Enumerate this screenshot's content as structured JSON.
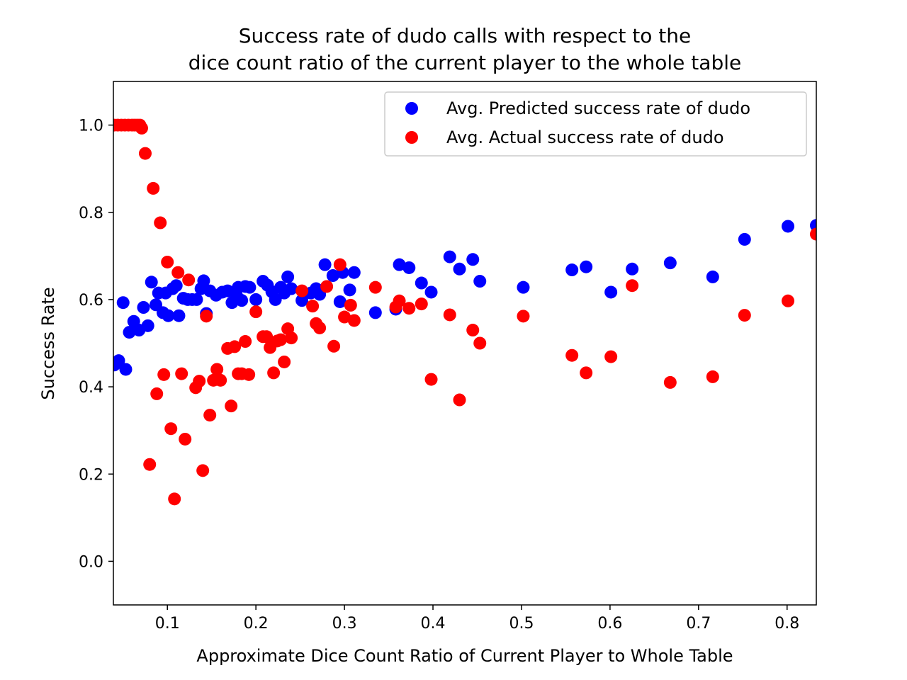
{
  "chart_data": {
    "type": "scatter",
    "title_lines": [
      "Success rate of dudo calls with respect to the",
      "dice count ratio of the current player to the whole table"
    ],
    "xlabel": "Approximate Dice Count Ratio of Current Player to Whole Table",
    "ylabel": "Success Rate",
    "xlim": [
      0.039,
      0.833
    ],
    "ylim": [
      -0.1,
      1.1
    ],
    "xticks": [
      {
        "value": 0.1,
        "label": "0.1"
      },
      {
        "value": 0.2,
        "label": "0.2"
      },
      {
        "value": 0.3,
        "label": "0.3"
      },
      {
        "value": 0.4,
        "label": "0.4"
      },
      {
        "value": 0.5,
        "label": "0.5"
      },
      {
        "value": 0.6,
        "label": "0.6"
      },
      {
        "value": 0.7,
        "label": "0.7"
      },
      {
        "value": 0.8,
        "label": "0.8"
      }
    ],
    "yticks": [
      {
        "value": 0.0,
        "label": "0.0"
      },
      {
        "value": 0.2,
        "label": "0.2"
      },
      {
        "value": 0.4,
        "label": "0.4"
      },
      {
        "value": 0.6,
        "label": "0.6"
      },
      {
        "value": 0.8,
        "label": "0.8"
      },
      {
        "value": 1.0,
        "label": "1.0"
      }
    ],
    "grid": false,
    "legend_position": "top-right",
    "series": [
      {
        "name": "Avg. Predicted success rate of dudo",
        "color": "#0000ff",
        "points": [
          [
            0.04,
            0.45
          ],
          [
            0.045,
            0.46
          ],
          [
            0.05,
            0.593
          ],
          [
            0.053,
            0.44
          ],
          [
            0.057,
            0.525
          ],
          [
            0.062,
            0.55
          ],
          [
            0.068,
            0.53
          ],
          [
            0.073,
            0.582
          ],
          [
            0.078,
            0.54
          ],
          [
            0.082,
            0.64
          ],
          [
            0.087,
            0.588
          ],
          [
            0.09,
            0.615
          ],
          [
            0.095,
            0.57
          ],
          [
            0.098,
            0.615
          ],
          [
            0.101,
            0.563
          ],
          [
            0.106,
            0.625
          ],
          [
            0.11,
            0.632
          ],
          [
            0.113,
            0.563
          ],
          [
            0.118,
            0.603
          ],
          [
            0.123,
            0.6
          ],
          [
            0.128,
            0.6
          ],
          [
            0.133,
            0.6
          ],
          [
            0.138,
            0.625
          ],
          [
            0.141,
            0.643
          ],
          [
            0.144,
            0.568
          ],
          [
            0.148,
            0.62
          ],
          [
            0.155,
            0.61
          ],
          [
            0.162,
            0.617
          ],
          [
            0.168,
            0.62
          ],
          [
            0.173,
            0.593
          ],
          [
            0.178,
            0.61
          ],
          [
            0.18,
            0.628
          ],
          [
            0.184,
            0.598
          ],
          [
            0.188,
            0.63
          ],
          [
            0.193,
            0.628
          ],
          [
            0.2,
            0.6
          ],
          [
            0.208,
            0.642
          ],
          [
            0.213,
            0.633
          ],
          [
            0.218,
            0.618
          ],
          [
            0.222,
            0.6
          ],
          [
            0.228,
            0.628
          ],
          [
            0.232,
            0.615
          ],
          [
            0.236,
            0.652
          ],
          [
            0.24,
            0.625
          ],
          [
            0.252,
            0.598
          ],
          [
            0.262,
            0.615
          ],
          [
            0.268,
            0.625
          ],
          [
            0.272,
            0.612
          ],
          [
            0.278,
            0.68
          ],
          [
            0.287,
            0.655
          ],
          [
            0.295,
            0.595
          ],
          [
            0.298,
            0.662
          ],
          [
            0.306,
            0.622
          ],
          [
            0.311,
            0.662
          ],
          [
            0.335,
            0.57
          ],
          [
            0.358,
            0.578
          ],
          [
            0.362,
            0.68
          ],
          [
            0.373,
            0.673
          ],
          [
            0.387,
            0.638
          ],
          [
            0.398,
            0.617
          ],
          [
            0.419,
            0.698
          ],
          [
            0.43,
            0.67
          ],
          [
            0.445,
            0.692
          ],
          [
            0.453,
            0.642
          ],
          [
            0.502,
            0.628
          ],
          [
            0.557,
            0.668
          ],
          [
            0.573,
            0.675
          ],
          [
            0.601,
            0.617
          ],
          [
            0.625,
            0.67
          ],
          [
            0.668,
            0.684
          ],
          [
            0.716,
            0.652
          ],
          [
            0.752,
            0.738
          ],
          [
            0.801,
            0.768
          ],
          [
            0.833,
            0.77
          ]
        ]
      },
      {
        "name": "Avg. Actual success rate of dudo",
        "color": "#ff0000",
        "points": [
          [
            0.04,
            1.0
          ],
          [
            0.044,
            1.0
          ],
          [
            0.048,
            1.0
          ],
          [
            0.052,
            1.0
          ],
          [
            0.056,
            1.0
          ],
          [
            0.06,
            1.0
          ],
          [
            0.063,
            1.0
          ],
          [
            0.066,
            1.0
          ],
          [
            0.069,
            1.0
          ],
          [
            0.071,
            0.993
          ],
          [
            0.075,
            0.935
          ],
          [
            0.08,
            0.222
          ],
          [
            0.084,
            0.855
          ],
          [
            0.088,
            0.384
          ],
          [
            0.092,
            0.776
          ],
          [
            0.096,
            0.428
          ],
          [
            0.1,
            0.686
          ],
          [
            0.104,
            0.304
          ],
          [
            0.108,
            0.143
          ],
          [
            0.112,
            0.662
          ],
          [
            0.116,
            0.43
          ],
          [
            0.12,
            0.28
          ],
          [
            0.124,
            0.645
          ],
          [
            0.132,
            0.398
          ],
          [
            0.136,
            0.413
          ],
          [
            0.14,
            0.208
          ],
          [
            0.144,
            0.562
          ],
          [
            0.148,
            0.335
          ],
          [
            0.152,
            0.415
          ],
          [
            0.156,
            0.44
          ],
          [
            0.16,
            0.415
          ],
          [
            0.168,
            0.488
          ],
          [
            0.172,
            0.356
          ],
          [
            0.176,
            0.492
          ],
          [
            0.18,
            0.43
          ],
          [
            0.184,
            0.43
          ],
          [
            0.188,
            0.504
          ],
          [
            0.192,
            0.428
          ],
          [
            0.2,
            0.572
          ],
          [
            0.208,
            0.515
          ],
          [
            0.212,
            0.515
          ],
          [
            0.216,
            0.49
          ],
          [
            0.22,
            0.432
          ],
          [
            0.224,
            0.505
          ],
          [
            0.228,
            0.508
          ],
          [
            0.232,
            0.457
          ],
          [
            0.236,
            0.533
          ],
          [
            0.24,
            0.512
          ],
          [
            0.252,
            0.62
          ],
          [
            0.264,
            0.585
          ],
          [
            0.268,
            0.545
          ],
          [
            0.272,
            0.535
          ],
          [
            0.28,
            0.63
          ],
          [
            0.288,
            0.493
          ],
          [
            0.295,
            0.68
          ],
          [
            0.3,
            0.56
          ],
          [
            0.307,
            0.587
          ],
          [
            0.311,
            0.552
          ],
          [
            0.335,
            0.628
          ],
          [
            0.358,
            0.583
          ],
          [
            0.362,
            0.597
          ],
          [
            0.373,
            0.58
          ],
          [
            0.387,
            0.59
          ],
          [
            0.398,
            0.417
          ],
          [
            0.419,
            0.565
          ],
          [
            0.43,
            0.37
          ],
          [
            0.445,
            0.53
          ],
          [
            0.453,
            0.5
          ],
          [
            0.502,
            0.562
          ],
          [
            0.557,
            0.472
          ],
          [
            0.573,
            0.432
          ],
          [
            0.601,
            0.469
          ],
          [
            0.625,
            0.632
          ],
          [
            0.668,
            0.41
          ],
          [
            0.716,
            0.423
          ],
          [
            0.752,
            0.564
          ],
          [
            0.801,
            0.597
          ],
          [
            0.833,
            0.75
          ]
        ]
      }
    ]
  }
}
